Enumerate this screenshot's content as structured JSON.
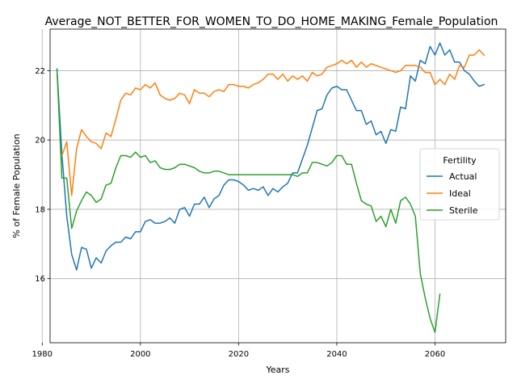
{
  "chart_data": {
    "type": "line",
    "title": "Average_NOT_BETTER_FOR_WOMEN_TO_DO_HOME_MAKING_Female_Population",
    "xlabel": "Years",
    "ylabel": "% of Female Population",
    "xlim": [
      1981.6,
      2074.4
    ],
    "ylim": [
      14.15,
      23.2
    ],
    "xticks": [
      1980,
      2000,
      2020,
      2040,
      2060
    ],
    "yticks": [
      16,
      18,
      20,
      22
    ],
    "grid": true,
    "legend": {
      "title": "Fertility",
      "position": "center-right"
    },
    "series": [
      {
        "name": "Actual",
        "color": "#1f77b4",
        "points": [
          [
            1983,
            22.05
          ],
          [
            1984,
            19.6
          ],
          [
            1985,
            17.8
          ],
          [
            1986,
            16.7
          ],
          [
            1987,
            16.25
          ],
          [
            1988,
            16.9
          ],
          [
            1989,
            16.85
          ],
          [
            1990,
            16.3
          ],
          [
            1991,
            16.6
          ],
          [
            1992,
            16.45
          ],
          [
            1993,
            16.8
          ],
          [
            1994,
            16.95
          ],
          [
            1995,
            17.05
          ],
          [
            1996,
            17.05
          ],
          [
            1997,
            17.2
          ],
          [
            1998,
            17.15
          ],
          [
            1999,
            17.35
          ],
          [
            2000,
            17.35
          ],
          [
            2001,
            17.65
          ],
          [
            2002,
            17.7
          ],
          [
            2003,
            17.6
          ],
          [
            2004,
            17.6
          ],
          [
            2005,
            17.65
          ],
          [
            2006,
            17.75
          ],
          [
            2007,
            17.6
          ],
          [
            2008,
            18.0
          ],
          [
            2009,
            18.05
          ],
          [
            2010,
            17.8
          ],
          [
            2011,
            18.15
          ],
          [
            2012,
            18.15
          ],
          [
            2013,
            18.35
          ],
          [
            2014,
            18.05
          ],
          [
            2015,
            18.3
          ],
          [
            2016,
            18.4
          ],
          [
            2017,
            18.7
          ],
          [
            2018,
            18.85
          ],
          [
            2019,
            18.85
          ],
          [
            2020,
            18.8
          ],
          [
            2021,
            18.7
          ],
          [
            2022,
            18.55
          ],
          [
            2023,
            18.6
          ],
          [
            2024,
            18.55
          ],
          [
            2025,
            18.65
          ],
          [
            2026,
            18.4
          ],
          [
            2027,
            18.6
          ],
          [
            2028,
            18.5
          ],
          [
            2029,
            18.65
          ],
          [
            2030,
            18.75
          ],
          [
            2031,
            19.05
          ],
          [
            2032,
            19.05
          ],
          [
            2033,
            19.45
          ],
          [
            2034,
            19.85
          ],
          [
            2035,
            20.35
          ],
          [
            2036,
            20.85
          ],
          [
            2037,
            20.9
          ],
          [
            2038,
            21.3
          ],
          [
            2039,
            21.5
          ],
          [
            2040,
            21.55
          ],
          [
            2041,
            21.45
          ],
          [
            2042,
            21.45
          ],
          [
            2043,
            21.15
          ],
          [
            2044,
            20.85
          ],
          [
            2045,
            20.85
          ],
          [
            2046,
            20.45
          ],
          [
            2047,
            20.55
          ],
          [
            2048,
            20.15
          ],
          [
            2049,
            20.25
          ],
          [
            2050,
            19.9
          ],
          [
            2051,
            20.3
          ],
          [
            2052,
            20.25
          ],
          [
            2053,
            20.95
          ],
          [
            2054,
            20.9
          ],
          [
            2055,
            21.85
          ],
          [
            2056,
            21.7
          ],
          [
            2057,
            22.3
          ],
          [
            2058,
            22.2
          ],
          [
            2059,
            22.7
          ],
          [
            2060,
            22.45
          ],
          [
            2061,
            22.8
          ],
          [
            2062,
            22.45
          ],
          [
            2063,
            22.6
          ],
          [
            2064,
            22.25
          ],
          [
            2065,
            22.25
          ],
          [
            2066,
            22.0
          ],
          [
            2067,
            21.9
          ],
          [
            2068,
            21.7
          ],
          [
            2069,
            21.55
          ],
          [
            2070,
            21.6
          ]
        ]
      },
      {
        "name": "Ideal",
        "color": "#ff7f0e",
        "points": [
          [
            1984,
            19.55
          ],
          [
            1985,
            19.95
          ],
          [
            1986,
            18.4
          ],
          [
            1987,
            19.75
          ],
          [
            1988,
            20.3
          ],
          [
            1989,
            20.1
          ],
          [
            1990,
            19.95
          ],
          [
            1991,
            19.9
          ],
          [
            1992,
            19.75
          ],
          [
            1993,
            20.2
          ],
          [
            1994,
            20.1
          ],
          [
            1995,
            20.6
          ],
          [
            1996,
            21.15
          ],
          [
            1997,
            21.35
          ],
          [
            1998,
            21.3
          ],
          [
            1999,
            21.5
          ],
          [
            2000,
            21.45
          ],
          [
            2001,
            21.6
          ],
          [
            2002,
            21.5
          ],
          [
            2003,
            21.65
          ],
          [
            2004,
            21.3
          ],
          [
            2005,
            21.2
          ],
          [
            2006,
            21.15
          ],
          [
            2007,
            21.2
          ],
          [
            2008,
            21.35
          ],
          [
            2009,
            21.3
          ],
          [
            2010,
            21.05
          ],
          [
            2011,
            21.45
          ],
          [
            2012,
            21.35
          ],
          [
            2013,
            21.35
          ],
          [
            2014,
            21.25
          ],
          [
            2015,
            21.4
          ],
          [
            2016,
            21.45
          ],
          [
            2017,
            21.4
          ],
          [
            2018,
            21.6
          ],
          [
            2019,
            21.6
          ],
          [
            2020,
            21.55
          ],
          [
            2021,
            21.55
          ],
          [
            2022,
            21.5
          ],
          [
            2023,
            21.6
          ],
          [
            2024,
            21.65
          ],
          [
            2025,
            21.75
          ],
          [
            2026,
            21.9
          ],
          [
            2027,
            21.9
          ],
          [
            2028,
            21.75
          ],
          [
            2029,
            21.9
          ],
          [
            2030,
            21.7
          ],
          [
            2031,
            21.85
          ],
          [
            2032,
            21.75
          ],
          [
            2033,
            21.85
          ],
          [
            2034,
            21.7
          ],
          [
            2035,
            21.95
          ],
          [
            2036,
            21.85
          ],
          [
            2037,
            21.9
          ],
          [
            2038,
            22.1
          ],
          [
            2039,
            22.15
          ],
          [
            2040,
            22.2
          ],
          [
            2041,
            22.3
          ],
          [
            2042,
            22.2
          ],
          [
            2043,
            22.3
          ],
          [
            2044,
            22.1
          ],
          [
            2045,
            22.25
          ],
          [
            2046,
            22.1
          ],
          [
            2047,
            22.2
          ],
          [
            2048,
            22.15
          ],
          [
            2049,
            22.1
          ],
          [
            2050,
            22.05
          ],
          [
            2051,
            22.0
          ],
          [
            2052,
            21.95
          ],
          [
            2053,
            22.0
          ],
          [
            2054,
            22.15
          ],
          [
            2055,
            22.15
          ],
          [
            2056,
            22.15
          ],
          [
            2057,
            22.1
          ],
          [
            2058,
            21.95
          ],
          [
            2059,
            21.95
          ],
          [
            2060,
            21.6
          ],
          [
            2061,
            21.75
          ],
          [
            2062,
            21.6
          ],
          [
            2063,
            21.9
          ],
          [
            2064,
            21.75
          ],
          [
            2065,
            22.15
          ],
          [
            2066,
            22.1
          ],
          [
            2067,
            22.45
          ],
          [
            2068,
            22.45
          ],
          [
            2069,
            22.6
          ],
          [
            2070,
            22.45
          ]
        ]
      },
      {
        "name": "Sterile",
        "color": "#2ca02c",
        "points": [
          [
            1983,
            22.05
          ],
          [
            1984,
            18.9
          ],
          [
            1985,
            18.9
          ],
          [
            1986,
            17.45
          ],
          [
            1987,
            17.95
          ],
          [
            1988,
            18.25
          ],
          [
            1989,
            18.5
          ],
          [
            1990,
            18.4
          ],
          [
            1991,
            18.2
          ],
          [
            1992,
            18.3
          ],
          [
            1993,
            18.7
          ],
          [
            1994,
            18.75
          ],
          [
            1995,
            19.2
          ],
          [
            1996,
            19.55
          ],
          [
            1997,
            19.55
          ],
          [
            1998,
            19.5
          ],
          [
            1999,
            19.65
          ],
          [
            2000,
            19.5
          ],
          [
            2001,
            19.55
          ],
          [
            2002,
            19.35
          ],
          [
            2003,
            19.4
          ],
          [
            2004,
            19.2
          ],
          [
            2005,
            19.15
          ],
          [
            2006,
            19.15
          ],
          [
            2007,
            19.2
          ],
          [
            2008,
            19.3
          ],
          [
            2009,
            19.3
          ],
          [
            2010,
            19.25
          ],
          [
            2011,
            19.2
          ],
          [
            2012,
            19.1
          ],
          [
            2013,
            19.05
          ],
          [
            2014,
            19.05
          ],
          [
            2015,
            19.1
          ],
          [
            2016,
            19.1
          ],
          [
            2017,
            19.05
          ],
          [
            2018,
            19.0
          ],
          [
            2019,
            19.0
          ],
          [
            2020,
            19.0
          ],
          [
            2021,
            19.0
          ],
          [
            2022,
            19.0
          ],
          [
            2023,
            19.0
          ],
          [
            2024,
            19.0
          ],
          [
            2025,
            19.0
          ],
          [
            2026,
            19.0
          ],
          [
            2027,
            19.0
          ],
          [
            2028,
            19.0
          ],
          [
            2029,
            19.0
          ],
          [
            2030,
            19.0
          ],
          [
            2031,
            19.0
          ],
          [
            2032,
            18.95
          ],
          [
            2033,
            19.05
          ],
          [
            2034,
            19.05
          ],
          [
            2035,
            19.35
          ],
          [
            2036,
            19.35
          ],
          [
            2037,
            19.3
          ],
          [
            2038,
            19.25
          ],
          [
            2039,
            19.35
          ],
          [
            2040,
            19.55
          ],
          [
            2041,
            19.55
          ],
          [
            2042,
            19.3
          ],
          [
            2043,
            19.3
          ],
          [
            2044,
            18.75
          ],
          [
            2045,
            18.25
          ],
          [
            2046,
            18.15
          ],
          [
            2047,
            18.1
          ],
          [
            2048,
            17.65
          ],
          [
            2049,
            17.8
          ],
          [
            2050,
            17.5
          ],
          [
            2051,
            18.0
          ],
          [
            2052,
            17.6
          ],
          [
            2053,
            18.25
          ],
          [
            2054,
            18.35
          ],
          [
            2055,
            18.15
          ],
          [
            2056,
            17.8
          ],
          [
            2057,
            16.15
          ],
          [
            2058,
            15.45
          ],
          [
            2059,
            14.85
          ],
          [
            2060,
            14.45
          ],
          [
            2061,
            15.55
          ]
        ]
      }
    ]
  }
}
